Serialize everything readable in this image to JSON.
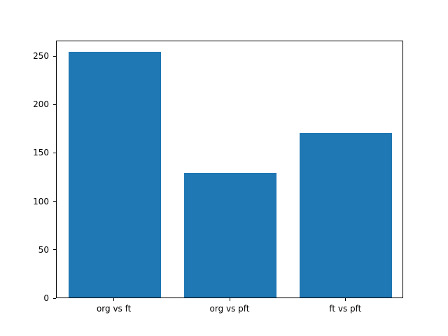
{
  "chart_data": {
    "type": "bar",
    "title": "",
    "xlabel": "",
    "ylabel": "",
    "categories": [
      "org vs ft",
      "org vs pft",
      "ft vs pft"
    ],
    "values": [
      254,
      129,
      170
    ],
    "yticks": [
      0,
      50,
      100,
      150,
      200,
      250
    ],
    "ylim": [
      0,
      266
    ],
    "bar_color": "#1f77b4",
    "bar_width_fraction": 0.8,
    "grid": false,
    "legend": "none",
    "background_color": "#ffffff",
    "axis_color": "#000000"
  }
}
